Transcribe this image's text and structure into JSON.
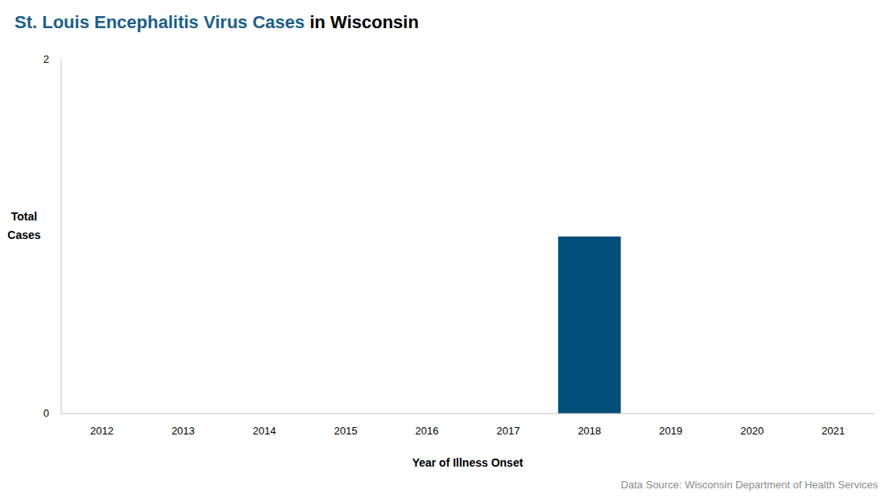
{
  "chart_data": {
    "type": "bar",
    "title": [
      "St. Louis Encephalitis Virus Cases",
      "in Wisconsin"
    ],
    "categories": [
      "2012",
      "2013",
      "2014",
      "2015",
      "2016",
      "2017",
      "2018",
      "2019",
      "2020",
      "2021"
    ],
    "values": [
      0,
      0,
      0,
      0,
      0,
      0,
      1,
      0,
      0,
      0
    ],
    "color": "#004f7a",
    "ylim": [
      0,
      2
    ],
    "yticks": [
      0,
      2
    ],
    "grid": false,
    "x_label": "Year of Illness Onset",
    "y_label": "Total Cases",
    "source": "Data Source: Wisconsin Department of Health Services"
  }
}
